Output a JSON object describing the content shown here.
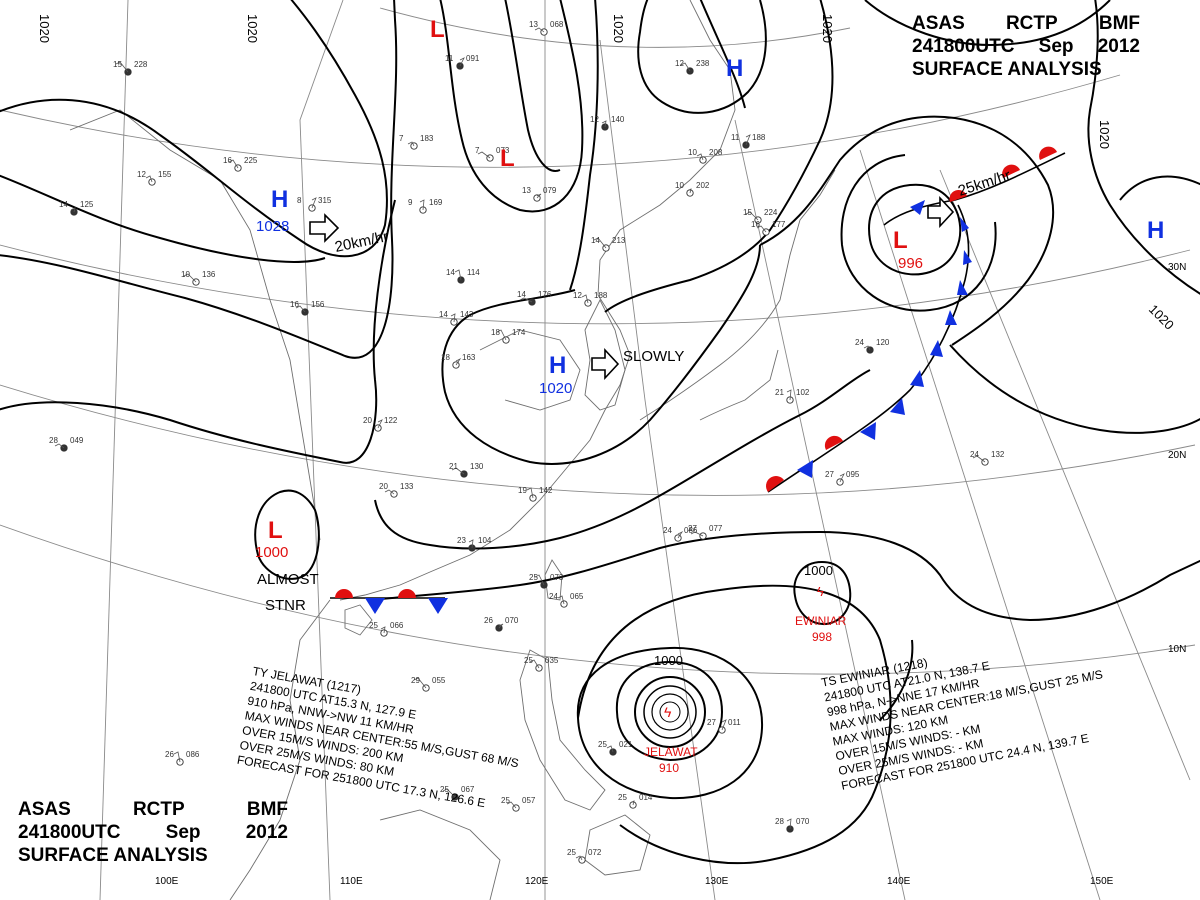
{
  "title": {
    "agency_line": [
      "ASAS",
      "RCTP",
      "BMF"
    ],
    "time_line": [
      "241800UTC",
      "Sep",
      "2012"
    ],
    "analysis_line": "SURFACE ANALYSIS"
  },
  "lon_labels": [
    "100E",
    "110E",
    "120E",
    "130E",
    "140E",
    "150E"
  ],
  "lat_labels": [
    "30N",
    "20N",
    "10N"
  ],
  "isobar_labels": [
    "1020",
    "1020",
    "1020",
    "1020",
    "1020",
    "1020",
    "1000",
    "1000"
  ],
  "pressure_centers": [
    {
      "type": "H",
      "value": "1028",
      "color": "#1030e0"
    },
    {
      "type": "H",
      "value": "",
      "color": "#1030e0"
    },
    {
      "type": "H",
      "value": "1020",
      "color": "#1030e0"
    },
    {
      "type": "H",
      "value": "",
      "color": "#1030e0"
    },
    {
      "type": "L",
      "value": "",
      "color": "#e01010"
    },
    {
      "type": "L",
      "value": "",
      "color": "#e01010"
    },
    {
      "type": "L",
      "value": "996",
      "color": "#e01010"
    },
    {
      "type": "L",
      "value": "1000",
      "color": "#e01010"
    }
  ],
  "motion_labels": [
    "20km/hr",
    "SLOWLY",
    "25km/hr"
  ],
  "stationary_label": [
    "ALMOST",
    "STNR"
  ],
  "typhoon_jelawat": {
    "center_name": "JELAWAT",
    "center_pressure": "910",
    "lines": [
      "TY  JELAWAT  (1217)",
      "241800 UTC  AT15.3 N, 127.9 E",
      "910 hPa, NNW->NW  11 KM/HR",
      "MAX WINDS NEAR CENTER:55 M/S,GUST 68 M/S",
      "OVER 15M/S WINDS: 200 KM",
      "OVER 25M/S WINDS: 80 KM",
      "FORECAST FOR 251800 UTC 17.3 N, 126.6 E"
    ]
  },
  "storm_ewiniar": {
    "center_name": "EWINIAR",
    "center_pressure": "998",
    "lines": [
      "TS  EWINIAR  (1218)",
      "241800 UTC  AT21.0 N, 138.7 E",
      "998 hPa, N->NNE  17 KM/HR",
      "MAX WINDS NEAR CENTER:18 M/S,GUST 25 M/S",
      "MAX WINDS: 120 KM",
      "OVER 15M/S WINDS: - KM",
      "OVER 25M/S WINDS: - KM",
      "FORECAST FOR 251800 UTC 24.4 N, 139.7 E"
    ]
  },
  "stations": [
    {
      "p": "228",
      "t": "15"
    },
    {
      "p": "225",
      "t": "16"
    },
    {
      "p": "155",
      "t": "12"
    },
    {
      "p": "125",
      "t": "14"
    },
    {
      "p": "315",
      "t": "8"
    },
    {
      "p": "136",
      "t": "10"
    },
    {
      "p": "156",
      "t": "16"
    },
    {
      "p": "183",
      "t": "7"
    },
    {
      "p": "169",
      "t": "9"
    },
    {
      "p": "091",
      "t": "11"
    },
    {
      "p": "073",
      "t": "7"
    },
    {
      "p": "068",
      "t": "13"
    },
    {
      "p": "114",
      "t": "14"
    },
    {
      "p": "143",
      "t": "14"
    },
    {
      "p": "163",
      "t": "18"
    },
    {
      "p": "176",
      "t": "14"
    },
    {
      "p": "174",
      "t": "18"
    },
    {
      "p": "188",
      "t": "12"
    },
    {
      "p": "140",
      "t": "12"
    },
    {
      "p": "079",
      "t": "13"
    },
    {
      "p": "213",
      "t": "14"
    },
    {
      "p": "238",
      "t": "12"
    },
    {
      "p": "208",
      "t": "10"
    },
    {
      "p": "202",
      "t": "10"
    },
    {
      "p": "188",
      "t": "11"
    },
    {
      "p": "224",
      "t": "15"
    },
    {
      "p": "177",
      "t": "16"
    },
    {
      "p": "120",
      "t": "24"
    },
    {
      "p": "102",
      "t": "21"
    },
    {
      "p": "122",
      "t": "20"
    },
    {
      "p": "130",
      "t": "21"
    },
    {
      "p": "133",
      "t": "20"
    },
    {
      "p": "142",
      "t": "19"
    },
    {
      "p": "104",
      "t": "23"
    },
    {
      "p": "086",
      "t": "24"
    },
    {
      "p": "077",
      "t": "27"
    },
    {
      "p": "073",
      "t": "25"
    },
    {
      "p": "065",
      "t": "24"
    },
    {
      "p": "066",
      "t": "25"
    },
    {
      "p": "070",
      "t": "26"
    },
    {
      "p": "055",
      "t": "29"
    },
    {
      "p": "035",
      "t": "25"
    },
    {
      "p": "021",
      "t": "25"
    },
    {
      "p": "014",
      "t": "25"
    },
    {
      "p": "011",
      "t": "27"
    },
    {
      "p": "067",
      "t": "25"
    },
    {
      "p": "057",
      "t": "25"
    },
    {
      "p": "072",
      "t": "25"
    },
    {
      "p": "070",
      "t": "28"
    },
    {
      "p": "095",
      "t": "27"
    },
    {
      "p": "132",
      "t": "24"
    },
    {
      "p": "049",
      "t": "28"
    },
    {
      "p": "086",
      "t": "26"
    }
  ]
}
